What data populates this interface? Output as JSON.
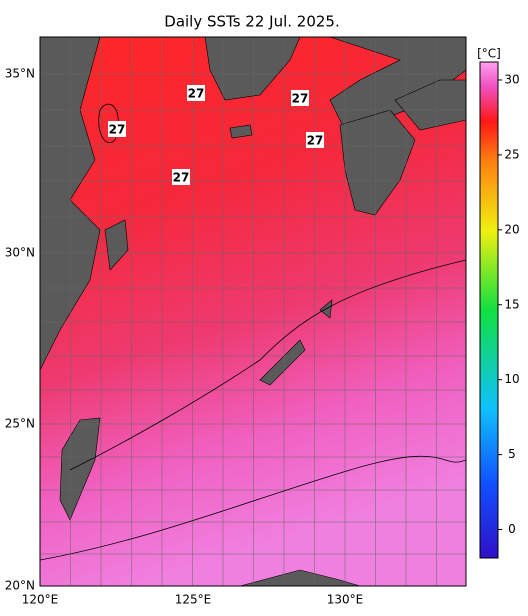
{
  "title": "Daily SSTs 22 Jul. 2025.",
  "map": {
    "lon_labels": [
      "120°E",
      "125°E",
      "130°E"
    ],
    "lat_labels": [
      "35°N",
      "30°N",
      "25°N",
      "20°N"
    ],
    "contour_labels": [
      "27",
      "27",
      "27",
      "27",
      "27"
    ]
  },
  "colorbar": {
    "unit": "[°C]",
    "range": [
      -1.9,
      31.2
    ],
    "ticks": [
      30,
      25,
      20,
      15,
      10,
      5,
      0
    ]
  }
}
